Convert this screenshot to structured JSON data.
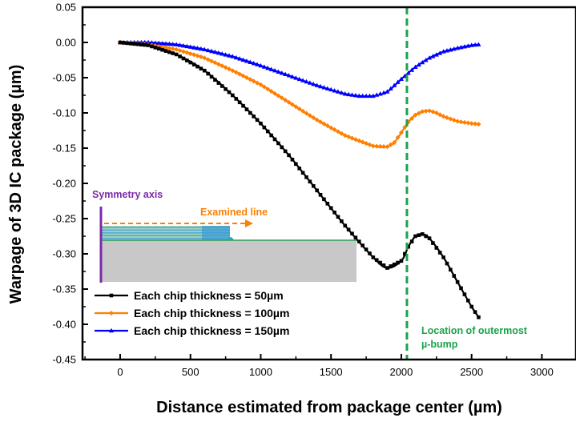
{
  "chart_data": {
    "type": "line",
    "xlabel": "Distance estimated from package center (µm)",
    "ylabel": "Warpage of 3D IC package (µm)",
    "xlim": [
      -150,
      3000
    ],
    "ylim": [
      -0.45,
      0.05
    ],
    "xticks": [
      "0",
      "500",
      "1000",
      "1500",
      "2000",
      "2500",
      "3000"
    ],
    "yticks": [
      "0.05",
      "0.00",
      "-0.05",
      "-0.10",
      "-0.15",
      "-0.20",
      "-0.25",
      "-0.30",
      "-0.35",
      "-0.40",
      "-0.45"
    ],
    "grid": false,
    "legend_position": "bottom-left",
    "series": [
      {
        "name": "Each chip thickness = 50µm",
        "color": "#000000",
        "marker": "square",
        "x": [
          0,
          200,
          400,
          600,
          800,
          1000,
          1200,
          1400,
          1600,
          1800,
          1900,
          2000,
          2050,
          2100,
          2150,
          2200,
          2300,
          2400,
          2500,
          2550
        ],
        "y": [
          0.0,
          -0.004,
          -0.017,
          -0.04,
          -0.075,
          -0.115,
          -0.16,
          -0.21,
          -0.26,
          -0.305,
          -0.32,
          -0.31,
          -0.29,
          -0.275,
          -0.272,
          -0.278,
          -0.305,
          -0.34,
          -0.375,
          -0.39
        ]
      },
      {
        "name": "Each chip thickness = 100µm",
        "color": "#ff7f00",
        "marker": "diamond",
        "x": [
          0,
          200,
          400,
          600,
          800,
          1000,
          1200,
          1400,
          1600,
          1800,
          1900,
          1950,
          2000,
          2050,
          2100,
          2150,
          2200,
          2250,
          2300,
          2400,
          2500,
          2550
        ],
        "y": [
          0.0,
          -0.003,
          -0.01,
          -0.022,
          -0.04,
          -0.06,
          -0.085,
          -0.11,
          -0.132,
          -0.147,
          -0.148,
          -0.142,
          -0.128,
          -0.113,
          -0.103,
          -0.098,
          -0.097,
          -0.1,
          -0.105,
          -0.112,
          -0.115,
          -0.116
        ]
      },
      {
        "name": "Each chip thickness = 150µm",
        "color": "#0000ff",
        "marker": "triangle",
        "x": [
          0,
          200,
          400,
          600,
          800,
          1000,
          1200,
          1400,
          1600,
          1700,
          1800,
          1900,
          2000,
          2100,
          2200,
          2300,
          2400,
          2500,
          2550
        ],
        "y": [
          0.0,
          0.0,
          -0.003,
          -0.01,
          -0.02,
          -0.033,
          -0.047,
          -0.061,
          -0.073,
          -0.076,
          -0.076,
          -0.07,
          -0.052,
          -0.035,
          -0.022,
          -0.013,
          -0.008,
          -0.004,
          -0.003
        ]
      }
    ],
    "annotations": {
      "vline": {
        "x": 2040,
        "color": "#1aa34a",
        "label": "Location of outermost µ-bump"
      },
      "inset": {
        "symmetry_label": "Symmetry axis",
        "examined_label": "Examined line"
      }
    }
  }
}
